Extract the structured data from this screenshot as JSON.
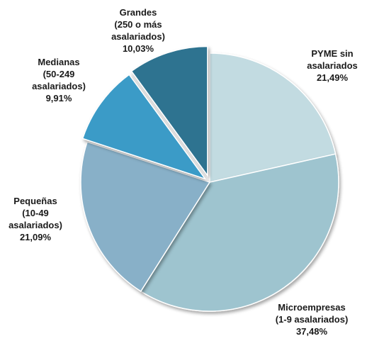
{
  "chart_data": {
    "type": "pie",
    "title": "",
    "start_angle_deg": 0,
    "direction": "clockwise",
    "slices": [
      {
        "label_lines": [
          "PYME sin",
          "asalariados",
          "21,49%"
        ],
        "value": 21.49,
        "color": "#c2dbe1"
      },
      {
        "label_lines": [
          "Microempresas",
          "(1-9 asalariados)",
          "37,48%"
        ],
        "value": 37.48,
        "color": "#9ec4cf"
      },
      {
        "label_lines": [
          "Pequeñas",
          "(10-49",
          "asalariados)",
          "21,09%"
        ],
        "value": 21.09,
        "color": "#88b0c8"
      },
      {
        "label_lines": [
          "Medianas",
          "(50-249",
          "asalariados)",
          "9,91%"
        ],
        "value": 9.91,
        "color": "#3a9bc7"
      },
      {
        "label_lines": [
          "Grandes",
          "(250 o más",
          "asalariados)",
          "10,03%"
        ],
        "value": 10.03,
        "color": "#2f7390"
      }
    ]
  }
}
